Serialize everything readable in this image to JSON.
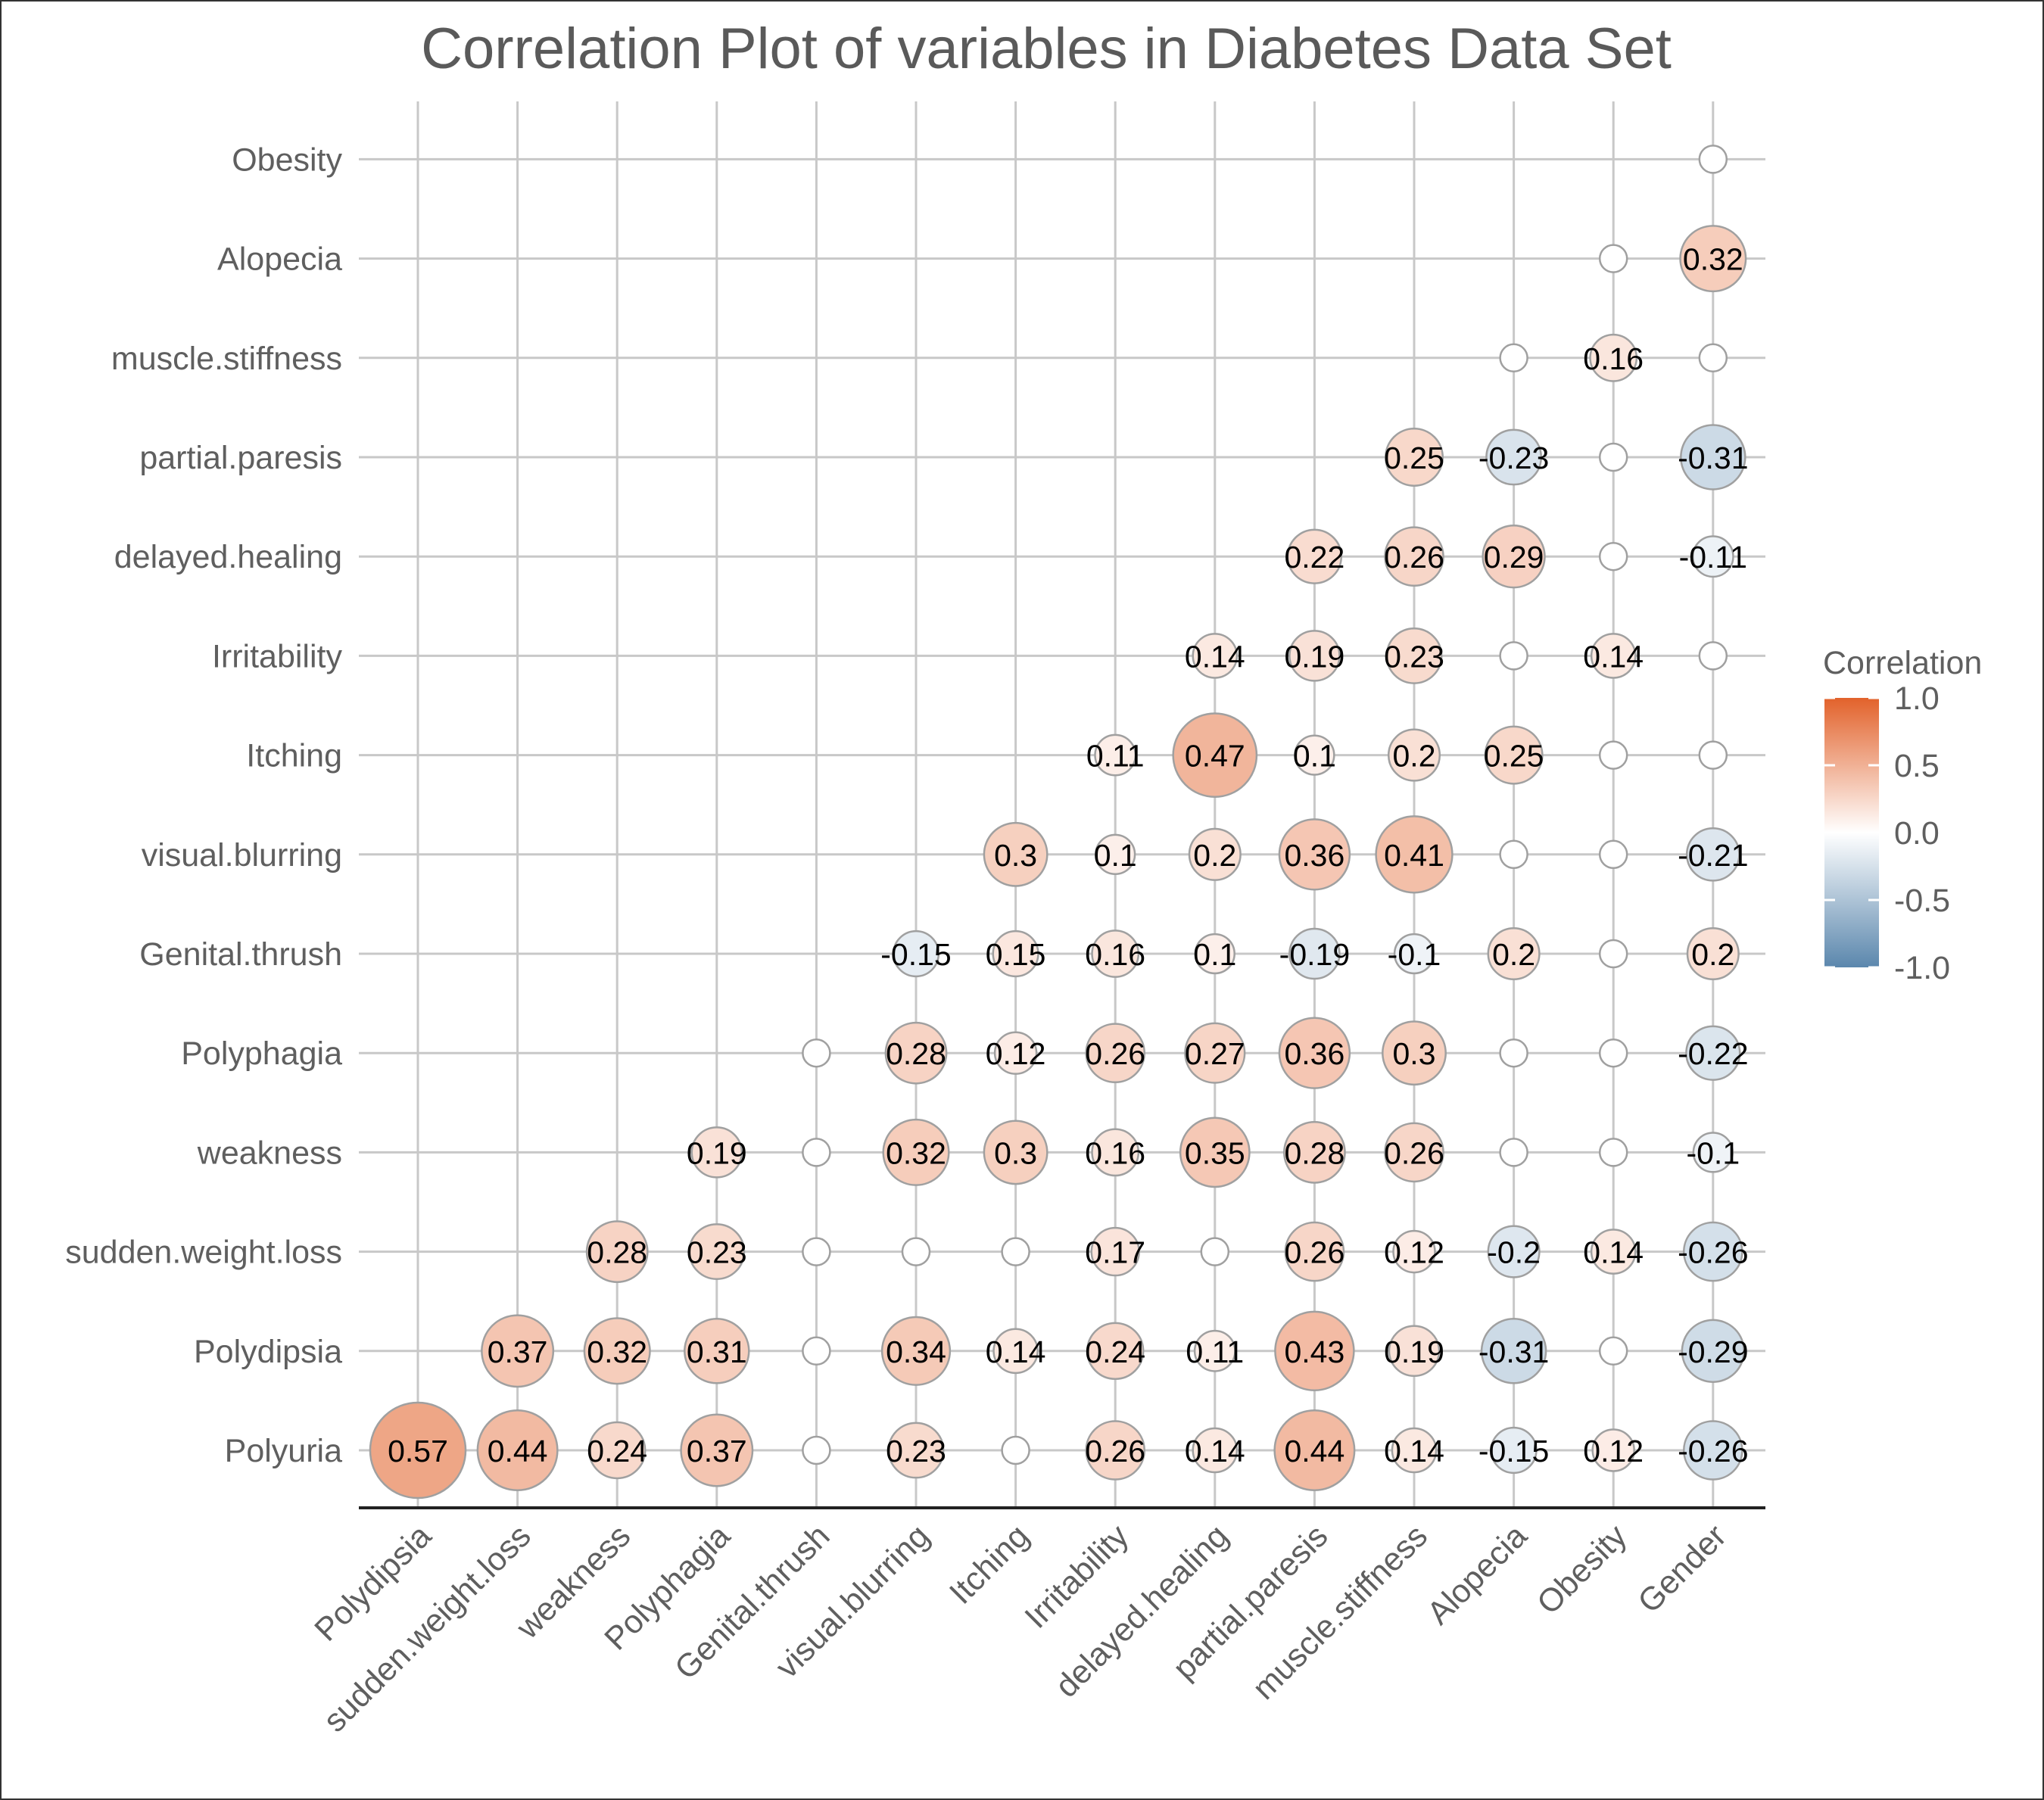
{
  "chart_data": {
    "type": "heatmap",
    "title": "Correlation Plot of variables in Diabetes Data Set",
    "x_labels": [
      "Polydipsia",
      "sudden.weight.loss",
      "weakness",
      "Polyphagia",
      "Genital.thrush",
      "visual.blurring",
      "Itching",
      "Irritability",
      "delayed.healing",
      "partial.paresis",
      "muscle.stiffness",
      "Alopecia",
      "Obesity",
      "Gender"
    ],
    "y_labels": [
      "Polyuria",
      "Polydipsia",
      "sudden.weight.loss",
      "weakness",
      "Polyphagia",
      "Genital.thrush",
      "visual.blurring",
      "Itching",
      "Irritability",
      "delayed.healing",
      "partial.paresis",
      "muscle.stiffness",
      "Alopecia",
      "Obesity"
    ],
    "values": [
      [
        0.57,
        0.44,
        0.24,
        0.37,
        0,
        0.23,
        0,
        0.26,
        0.14,
        0.44,
        0.14,
        -0.15,
        0.12,
        -0.26
      ],
      [
        null,
        0.37,
        0.32,
        0.31,
        0,
        0.34,
        0.14,
        0.24,
        0.11,
        0.43,
        0.19,
        -0.31,
        0,
        -0.29
      ],
      [
        null,
        null,
        0.28,
        0.23,
        0,
        0,
        0,
        0.17,
        0,
        0.26,
        0.12,
        -0.2,
        0.14,
        -0.26
      ],
      [
        null,
        null,
        null,
        0.19,
        0,
        0.32,
        0.3,
        0.16,
        0.35,
        0.28,
        0.26,
        0,
        0,
        -0.1
      ],
      [
        null,
        null,
        null,
        null,
        0,
        0.28,
        0.12,
        0.26,
        0.27,
        0.36,
        0.3,
        0,
        0,
        -0.22
      ],
      [
        null,
        null,
        null,
        null,
        null,
        -0.15,
        0.15,
        0.16,
        0.1,
        -0.19,
        -0.1,
        0.2,
        0,
        0.2
      ],
      [
        null,
        null,
        null,
        null,
        null,
        null,
        0.3,
        0.1,
        0.2,
        0.36,
        0.41,
        0,
        0,
        -0.21
      ],
      [
        null,
        null,
        null,
        null,
        null,
        null,
        null,
        0.11,
        0.47,
        0.1,
        0.2,
        0.25,
        0,
        0
      ],
      [
        null,
        null,
        null,
        null,
        null,
        null,
        null,
        null,
        0.14,
        0.19,
        0.23,
        0,
        0.14,
        0
      ],
      [
        null,
        null,
        null,
        null,
        null,
        null,
        null,
        null,
        null,
        0.22,
        0.26,
        0.29,
        0,
        -0.11
      ],
      [
        null,
        null,
        null,
        null,
        null,
        null,
        null,
        null,
        null,
        null,
        0.25,
        -0.23,
        0,
        -0.31
      ],
      [
        null,
        null,
        null,
        null,
        null,
        null,
        null,
        null,
        null,
        null,
        null,
        0,
        0.16,
        0
      ],
      [
        null,
        null,
        null,
        null,
        null,
        null,
        null,
        null,
        null,
        null,
        null,
        null,
        0,
        0.32
      ],
      [
        null,
        null,
        null,
        null,
        null,
        null,
        null,
        null,
        null,
        null,
        null,
        null,
        null,
        0
      ]
    ],
    "cell_labels": [
      [
        "0.57",
        "0.44",
        "0.24",
        "0.37",
        "",
        "0.23",
        "",
        "0.26",
        "0.14",
        "0.44",
        "0.14",
        "-0.15",
        "0.12",
        "-0.26"
      ],
      [
        "",
        "0.37",
        "0.32",
        "0.31",
        "",
        "0.34",
        "0.14",
        "0.24",
        "0.11",
        "0.43",
        "0.19",
        "-0.31",
        "",
        "-0.29"
      ],
      [
        "",
        "",
        "0.28",
        "0.23",
        "",
        "",
        "",
        "0.17",
        "",
        "0.26",
        "0.12",
        "-0.2",
        "0.14",
        "-0.26"
      ],
      [
        "",
        "",
        "",
        "0.19",
        "",
        "0.32",
        "0.3",
        "0.16",
        "0.35",
        "0.28",
        "0.26",
        "",
        "",
        "-0.1"
      ],
      [
        "",
        "",
        "",
        "",
        "",
        "0.28",
        "0.12",
        "0.26",
        "0.27",
        "0.36",
        "0.3",
        "",
        "",
        "-0.22"
      ],
      [
        "",
        "",
        "",
        "",
        "",
        "-0.15",
        "0.15",
        "0.16",
        "0.1",
        "-0.19",
        "-0.1",
        "0.2",
        "",
        "0.2"
      ],
      [
        "",
        "",
        "",
        "",
        "",
        "",
        "0.3",
        "0.1",
        "0.2",
        "0.36",
        "0.41",
        "",
        "",
        "-0.21"
      ],
      [
        "",
        "",
        "",
        "",
        "",
        "",
        "",
        "0.11",
        "0.47",
        "0.1",
        "0.2",
        "0.25",
        "",
        ""
      ],
      [
        "",
        "",
        "",
        "",
        "",
        "",
        "",
        "",
        "0.14",
        "0.19",
        "0.23",
        "",
        "0.14",
        ""
      ],
      [
        "",
        "",
        "",
        "",
        "",
        "",
        "",
        "",
        "",
        "0.22",
        "0.26",
        "0.29",
        "",
        "-0.11"
      ],
      [
        "",
        "",
        "",
        "",
        "",
        "",
        "",
        "",
        "",
        "",
        "0.25",
        "-0.23",
        "",
        "-0.31"
      ],
      [
        "",
        "",
        "",
        "",
        "",
        "",
        "",
        "",
        "",
        "",
        "",
        "",
        "0.16",
        ""
      ],
      [
        "",
        "",
        "",
        "",
        "",
        "",
        "",
        "",
        "",
        "",
        "",
        "",
        "",
        "0.32"
      ],
      [
        "",
        "",
        "",
        "",
        "",
        "",
        "",
        "",
        "",
        "",
        "",
        "",
        "",
        ""
      ]
    ],
    "legend": {
      "title": "Correlation",
      "ticks": [
        1.0,
        0.5,
        0.0,
        -0.5,
        -1.0
      ],
      "tick_labels": [
        "1.0",
        "0.5",
        "0.0",
        "-0.5",
        "-1.0"
      ],
      "placement": "right"
    },
    "colors": {
      "positive": "#e2622b",
      "zero": "#ffffff",
      "negative": "#5b87ad",
      "grid": "#c8c8c8",
      "circle_stroke": "#a0a0a0"
    },
    "grid": true,
    "value_range": [
      -1,
      1
    ]
  }
}
